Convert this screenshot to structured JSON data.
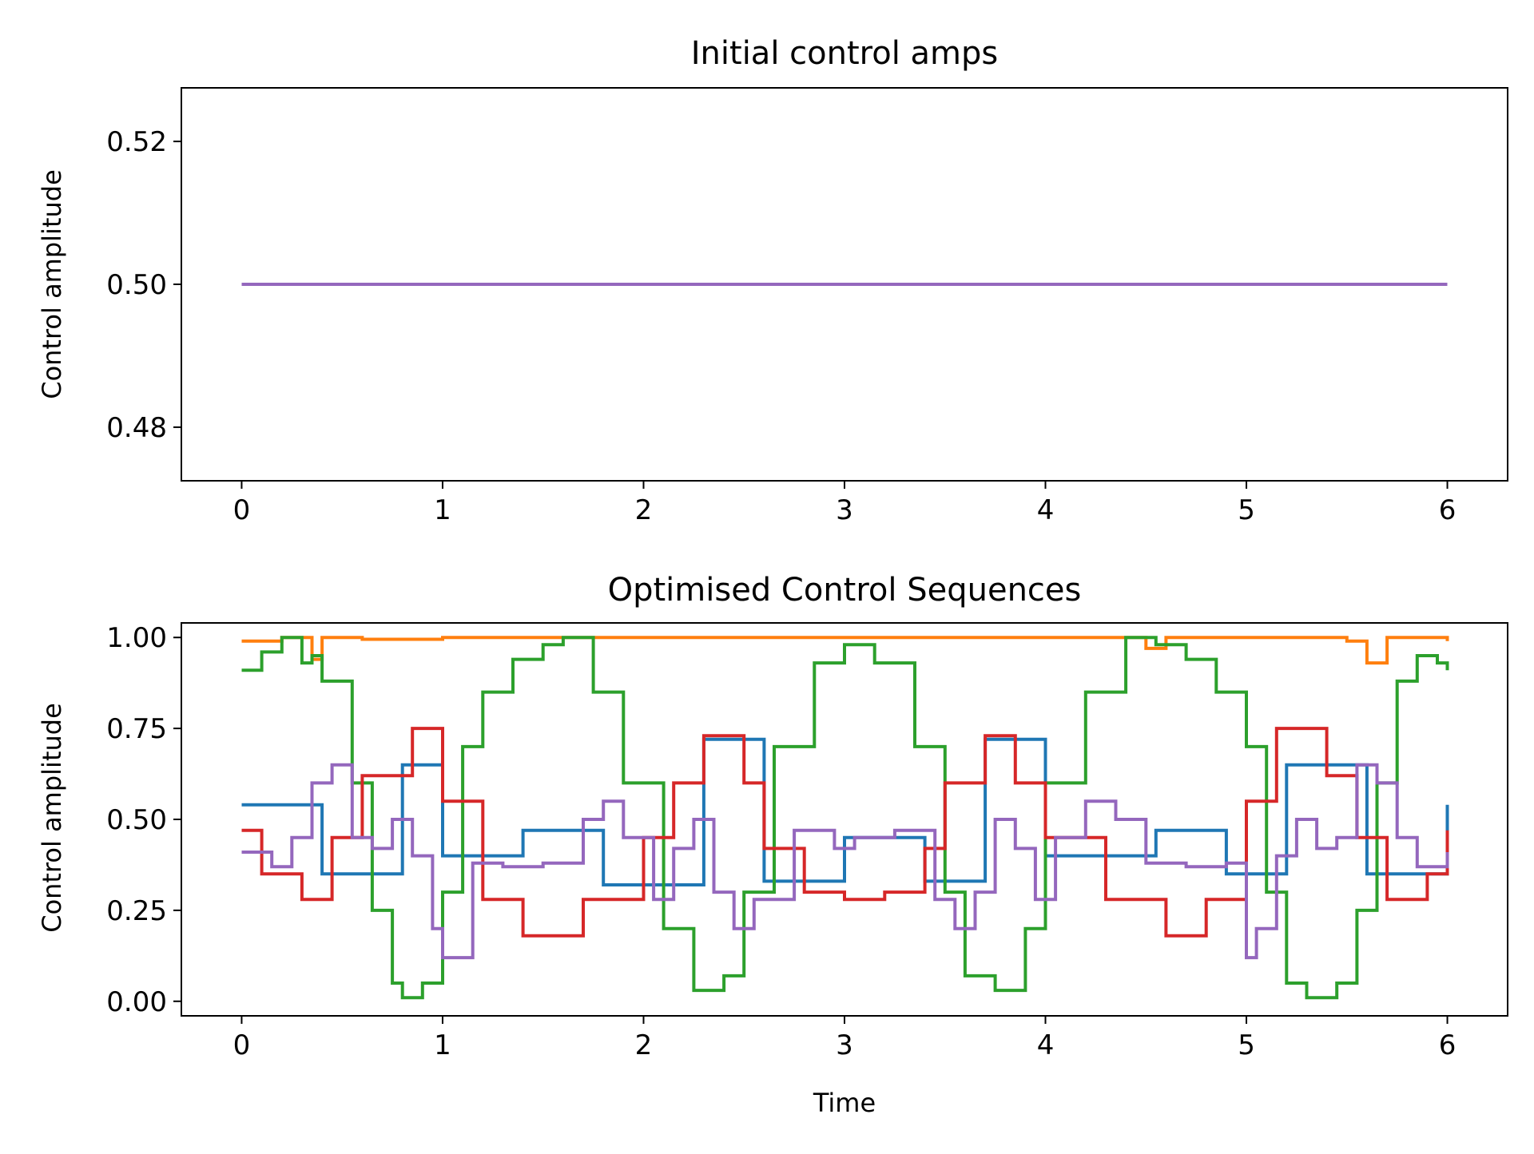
{
  "chart_data": [
    {
      "type": "line",
      "title": "Initial control amps",
      "xlabel": "",
      "ylabel": "Control amplitude",
      "xlim": [
        -0.3,
        6.3
      ],
      "ylim": [
        0.4725,
        0.5275
      ],
      "xticks": [
        0,
        1,
        2,
        3,
        4,
        5,
        6
      ],
      "xtick_labels": [
        "0",
        "1",
        "2",
        "3",
        "4",
        "5",
        "6"
      ],
      "yticks": [
        0.48,
        0.5,
        0.52
      ],
      "ytick_labels": [
        "0.48",
        "0.50",
        "0.52"
      ],
      "grid": false,
      "series": [
        {
          "color": "#1f77b4",
          "x": [
            0,
            6
          ],
          "y": [
            0.5,
            0.5
          ]
        },
        {
          "color": "#ff7f0e",
          "x": [
            0,
            6
          ],
          "y": [
            0.5,
            0.5
          ]
        },
        {
          "color": "#2ca02c",
          "x": [
            0,
            6
          ],
          "y": [
            0.5,
            0.5
          ]
        },
        {
          "color": "#d62728",
          "x": [
            0,
            6
          ],
          "y": [
            0.5,
            0.5
          ]
        },
        {
          "color": "#9467bd",
          "x": [
            0,
            6
          ],
          "y": [
            0.5,
            0.5
          ]
        }
      ]
    },
    {
      "type": "line",
      "step": "post",
      "title": "Optimised Control Sequences",
      "xlabel": "Time",
      "ylabel": "Control amplitude",
      "xlim": [
        -0.3,
        6.3
      ],
      "ylim": [
        -0.04,
        1.04
      ],
      "xticks": [
        0,
        1,
        2,
        3,
        4,
        5,
        6
      ],
      "xtick_labels": [
        "0",
        "1",
        "2",
        "3",
        "4",
        "5",
        "6"
      ],
      "yticks": [
        0.0,
        0.25,
        0.5,
        0.75,
        1.0
      ],
      "ytick_labels": [
        "0.00",
        "0.25",
        "0.50",
        "0.75",
        "1.00"
      ],
      "grid": false,
      "series": [
        {
          "color": "#1f77b4",
          "x": [
            0,
            0.4,
            0.8,
            1.0,
            1.4,
            1.8,
            2.3,
            2.6,
            3.0,
            3.4,
            3.7,
            4.0,
            4.55,
            4.9,
            5.2,
            5.6,
            6.0
          ],
          "y": [
            0.54,
            0.35,
            0.65,
            0.4,
            0.47,
            0.32,
            0.72,
            0.33,
            0.45,
            0.33,
            0.72,
            0.4,
            0.47,
            0.35,
            0.65,
            0.35,
            0.54
          ]
        },
        {
          "color": "#ff7f0e",
          "x": [
            0,
            0.2,
            0.35,
            0.4,
            0.6,
            1.0,
            1.5,
            2.0,
            3.0,
            4.0,
            4.5,
            4.6,
            5.0,
            5.5,
            5.6,
            5.7,
            6.0
          ],
          "y": [
            0.99,
            1.0,
            0.94,
            1.0,
            0.995,
            1.0,
            1.0,
            1.0,
            1.0,
            1.0,
            0.97,
            1.0,
            1.0,
            0.99,
            0.93,
            1.0,
            0.99
          ]
        },
        {
          "color": "#2ca02c",
          "x": [
            0,
            0.1,
            0.2,
            0.3,
            0.35,
            0.4,
            0.55,
            0.65,
            0.75,
            0.8,
            0.9,
            1.0,
            1.1,
            1.2,
            1.35,
            1.5,
            1.6,
            1.75,
            1.9,
            2.1,
            2.25,
            2.4,
            2.5,
            2.65,
            2.85,
            3.0,
            3.15,
            3.35,
            3.5,
            3.6,
            3.75,
            3.9,
            4.0,
            4.2,
            4.4,
            4.55,
            4.7,
            4.85,
            5.0,
            5.1,
            5.2,
            5.3,
            5.45,
            5.55,
            5.65,
            5.75,
            5.85,
            5.95,
            6.0
          ],
          "y": [
            0.91,
            0.96,
            1.0,
            0.93,
            0.95,
            0.88,
            0.6,
            0.25,
            0.05,
            0.01,
            0.05,
            0.3,
            0.7,
            0.85,
            0.94,
            0.98,
            1.0,
            0.85,
            0.6,
            0.2,
            0.03,
            0.07,
            0.3,
            0.7,
            0.93,
            0.98,
            0.93,
            0.7,
            0.3,
            0.07,
            0.03,
            0.2,
            0.6,
            0.85,
            1.0,
            0.98,
            0.94,
            0.85,
            0.7,
            0.3,
            0.05,
            0.01,
            0.05,
            0.25,
            0.6,
            0.88,
            0.95,
            0.93,
            0.91
          ]
        },
        {
          "color": "#d62728",
          "x": [
            0,
            0.1,
            0.3,
            0.45,
            0.6,
            0.85,
            1.0,
            1.2,
            1.4,
            1.7,
            2.0,
            2.15,
            2.3,
            2.5,
            2.6,
            2.8,
            3.0,
            3.2,
            3.4,
            3.5,
            3.7,
            3.85,
            4.0,
            4.3,
            4.6,
            4.8,
            5.0,
            5.15,
            5.4,
            5.55,
            5.7,
            5.9,
            6.0
          ],
          "y": [
            0.47,
            0.35,
            0.28,
            0.45,
            0.62,
            0.75,
            0.55,
            0.28,
            0.18,
            0.28,
            0.45,
            0.6,
            0.73,
            0.6,
            0.42,
            0.3,
            0.28,
            0.3,
            0.42,
            0.6,
            0.73,
            0.6,
            0.45,
            0.28,
            0.18,
            0.28,
            0.55,
            0.75,
            0.62,
            0.45,
            0.28,
            0.35,
            0.47
          ]
        },
        {
          "color": "#9467bd",
          "x": [
            0,
            0.15,
            0.25,
            0.35,
            0.45,
            0.55,
            0.65,
            0.75,
            0.85,
            0.95,
            1.0,
            1.15,
            1.3,
            1.5,
            1.7,
            1.8,
            1.9,
            2.05,
            2.15,
            2.25,
            2.35,
            2.45,
            2.55,
            2.75,
            2.95,
            3.05,
            3.25,
            3.45,
            3.55,
            3.65,
            3.75,
            3.85,
            3.95,
            4.05,
            4.2,
            4.35,
            4.5,
            4.7,
            4.9,
            5.0,
            5.05,
            5.15,
            5.25,
            5.35,
            5.45,
            5.55,
            5.65,
            5.75,
            5.85,
            6.0
          ],
          "y": [
            0.41,
            0.37,
            0.45,
            0.6,
            0.65,
            0.45,
            0.42,
            0.5,
            0.4,
            0.2,
            0.12,
            0.38,
            0.37,
            0.38,
            0.5,
            0.55,
            0.45,
            0.28,
            0.42,
            0.5,
            0.3,
            0.2,
            0.28,
            0.47,
            0.42,
            0.45,
            0.47,
            0.28,
            0.2,
            0.3,
            0.5,
            0.42,
            0.28,
            0.45,
            0.55,
            0.5,
            0.38,
            0.37,
            0.38,
            0.12,
            0.2,
            0.4,
            0.5,
            0.42,
            0.45,
            0.65,
            0.6,
            0.45,
            0.37,
            0.41
          ]
        }
      ]
    }
  ]
}
